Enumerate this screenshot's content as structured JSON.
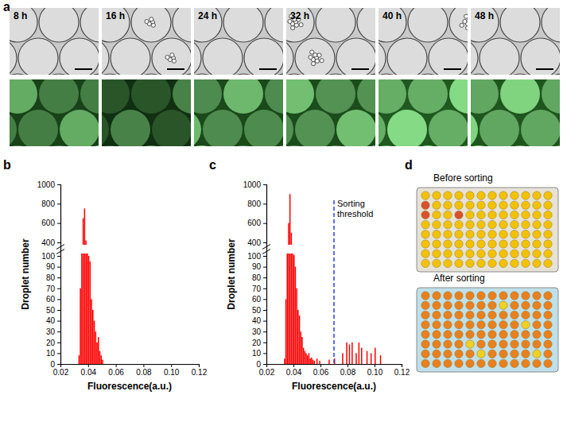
{
  "chart_data": [
    {
      "type": "histogram",
      "color": "#ff0000",
      "x_label": "Fluorescence(a.u.)",
      "y_label": "Droplet number",
      "bins": [
        0.033,
        0.034,
        0.035,
        0.036,
        0.037,
        0.038,
        0.039,
        0.04,
        0.041,
        0.042,
        0.043,
        0.044,
        0.045,
        0.046,
        0.047,
        0.048,
        0.049,
        0.05,
        0.051
      ],
      "values": [
        8,
        70,
        280,
        650,
        750,
        420,
        200,
        100,
        95,
        60,
        50,
        40,
        30,
        20,
        25,
        12,
        8,
        4
      ],
      "xlim": [
        0.02,
        0.12
      ],
      "xticks": [
        0.02,
        0.04,
        0.06,
        0.08,
        {
          "value": 0.1,
          "label": "0.10"
        },
        0.12
      ],
      "ylim": [
        0,
        1000
      ],
      "y_break": [
        100,
        400
      ],
      "yticks": [
        0,
        10,
        20,
        30,
        40,
        50,
        60,
        70,
        80,
        90,
        100,
        400,
        600,
        800,
        1000
      ]
    },
    {
      "type": "histogram",
      "color": "#ff0000",
      "x_label": "Fluorescence(a.u.)",
      "y_label": "Droplet number",
      "bins": [
        0.033,
        0.034,
        0.035,
        0.036,
        0.037,
        0.038,
        0.039,
        0.04,
        0.041,
        0.042,
        0.043,
        0.044,
        0.045,
        0.046,
        0.047,
        0.048,
        0.049,
        0.05,
        0.051,
        0.052,
        0.053,
        0.054,
        0.055,
        0.056,
        0.057,
        0.058,
        0.059,
        0.06,
        0.061,
        0.062,
        0.063,
        0.064,
        0.065,
        0.066,
        0.067,
        0.068,
        0.069,
        0.07,
        0.071,
        0.072,
        0.073,
        0.074,
        0.075,
        0.076,
        0.077,
        0.078,
        0.079,
        0.08,
        0.081,
        0.082,
        0.083,
        0.084,
        0.085,
        0.086,
        0.087,
        0.088,
        0.089,
        0.09,
        0.091,
        0.092,
        0.093,
        0.094,
        0.095,
        0.096,
        0.097,
        0.098,
        0.099,
        0.1,
        0.101,
        0.102,
        0.103,
        0.104,
        0.105
      ],
      "values": [
        5,
        60,
        250,
        600,
        900,
        500,
        250,
        120,
        90,
        70,
        50,
        45,
        30,
        25,
        15,
        12,
        10,
        8,
        10,
        5,
        6,
        4,
        3,
        0,
        5,
        0,
        3,
        0,
        0,
        0,
        0,
        0,
        0,
        4,
        0,
        0,
        0,
        5,
        0,
        0,
        0,
        0,
        0,
        10,
        0,
        0,
        20,
        0,
        18,
        0,
        20,
        0,
        0,
        10,
        0,
        20,
        0,
        15,
        0,
        0,
        0,
        12,
        0,
        0,
        10,
        0,
        0,
        15,
        0,
        0,
        0,
        8
      ],
      "xlim": [
        0.02,
        0.12
      ],
      "xticks": [
        0.02,
        0.04,
        0.06,
        0.08,
        {
          "value": 0.1,
          "label": "0.10"
        },
        0.12
      ],
      "ylim": [
        0,
        1000
      ],
      "y_break": [
        100,
        400
      ],
      "yticks": [
        0,
        10,
        20,
        30,
        40,
        50,
        60,
        70,
        80,
        90,
        100,
        400,
        600,
        800,
        1000
      ],
      "threshold": {
        "value": 0.07,
        "label": "Sorting threshold"
      }
    }
  ],
  "figure": {
    "panel_labels": [
      "a",
      "b",
      "c",
      "d"
    ],
    "time_labels": [
      "8 h",
      "16 h",
      "24 h",
      "32 h",
      "40 h",
      "48 h"
    ],
    "plate_labels": [
      "Before sorting",
      "After sorting"
    ]
  }
}
